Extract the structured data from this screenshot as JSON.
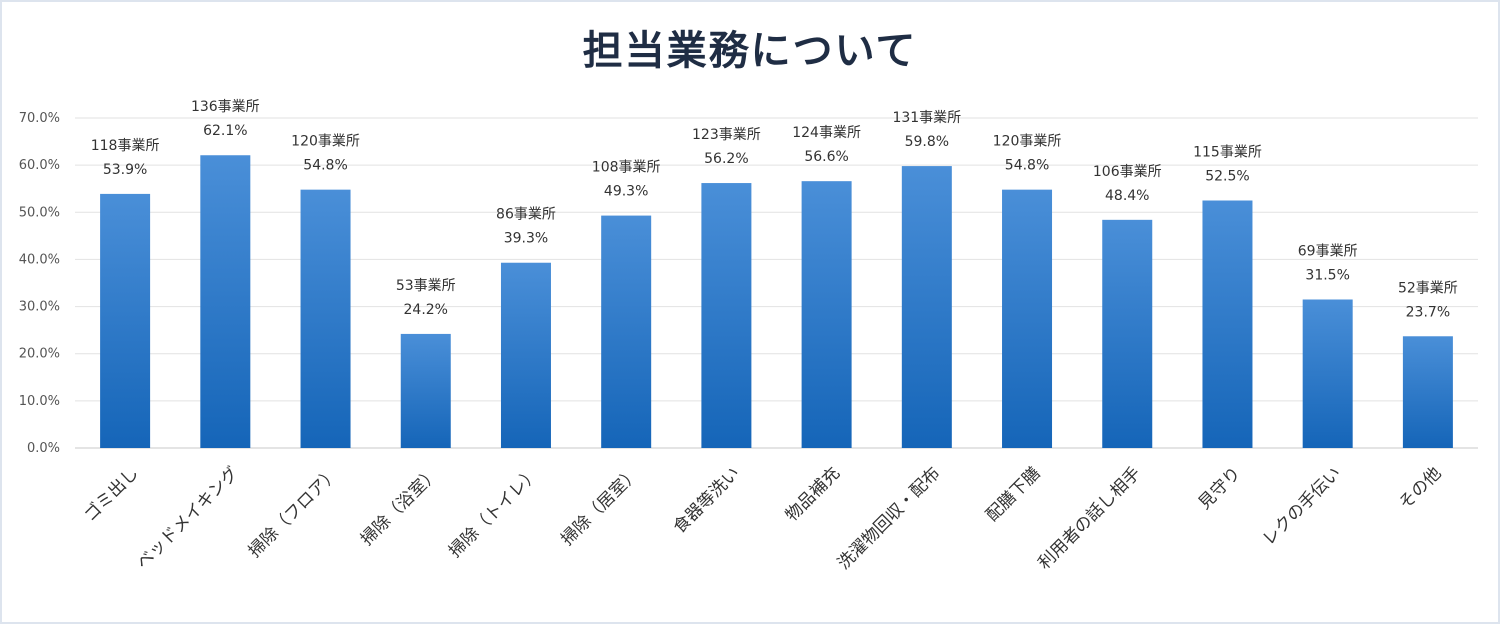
{
  "chart_data": {
    "type": "bar",
    "title": "担当業務について",
    "categories": [
      "ゴミ出し",
      "ベッドメイキング",
      "掃除（フロア）",
      "掃除（浴室）",
      "掃除（トイレ）",
      "掃除（居室）",
      "食器等洗い",
      "物品補充",
      "洗濯物回収・配布",
      "配膳下膳",
      "利用者の話し相手",
      "見守り",
      "レクの手伝い",
      "その他"
    ],
    "values": [
      53.9,
      62.1,
      54.8,
      24.2,
      39.3,
      49.3,
      56.2,
      56.6,
      59.8,
      54.8,
      48.4,
      52.5,
      31.5,
      23.7
    ],
    "value_labels": [
      "53.9%",
      "62.1%",
      "54.8%",
      "24.2%",
      "39.3%",
      "49.3%",
      "56.2%",
      "56.6%",
      "59.8%",
      "54.8%",
      "48.4%",
      "52.5%",
      "31.5%",
      "23.7%"
    ],
    "count_labels": [
      "118事業所",
      "136事業所",
      "120事業所",
      "53事業所",
      "86事業所",
      "108事業所",
      "123事業所",
      "124事業所",
      "131事業所",
      "120事業所",
      "106事業所",
      "115事業所",
      "69事業所",
      "52事業所"
    ],
    "yticks": [
      "0.0%",
      "10.0%",
      "20.0%",
      "30.0%",
      "40.0%",
      "50.0%",
      "60.0%",
      "70.0%"
    ],
    "ylim": [
      0,
      70
    ],
    "grid": true,
    "legend": "none",
    "bar_color_top": "#4a8fd8",
    "bar_color_bottom": "#1565b8"
  }
}
